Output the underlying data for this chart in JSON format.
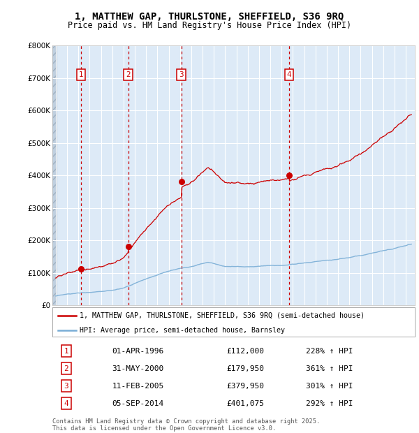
{
  "title_line1": "1, MATTHEW GAP, THURLSTONE, SHEFFIELD, S36 9RQ",
  "title_line2": "Price paid vs. HM Land Registry's House Price Index (HPI)",
  "purchases": [
    {
      "num": 1,
      "date_num": 1996.25,
      "price": 112000,
      "label": "01-APR-1996",
      "pct": "228% ↑ HPI"
    },
    {
      "num": 2,
      "date_num": 2000.42,
      "price": 179950,
      "label": "31-MAY-2000",
      "pct": "361% ↑ HPI"
    },
    {
      "num": 3,
      "date_num": 2005.12,
      "price": 379950,
      "label": "11-FEB-2005",
      "pct": "301% ↑ HPI"
    },
    {
      "num": 4,
      "date_num": 2014.67,
      "price": 401075,
      "label": "05-SEP-2014",
      "pct": "292% ↑ HPI"
    }
  ],
  "hpi_color": "#7aaed6",
  "price_color": "#cc0000",
  "background_chart": "#ddeaf7",
  "ylim": [
    0,
    800000
  ],
  "xlim_start": 1993.7,
  "xlim_end": 2025.8,
  "legend_label_price": "1, MATTHEW GAP, THURLSTONE, SHEFFIELD, S36 9RQ (semi-detached house)",
  "legend_label_hpi": "HPI: Average price, semi-detached house, Barnsley",
  "footer": "Contains HM Land Registry data © Crown copyright and database right 2025.\nThis data is licensed under the Open Government Licence v3.0.",
  "row_data": [
    [
      1,
      "01-APR-1996",
      "£112,000",
      "228% ↑ HPI"
    ],
    [
      2,
      "31-MAY-2000",
      "£179,950",
      "361% ↑ HPI"
    ],
    [
      3,
      "11-FEB-2005",
      "£379,950",
      "301% ↑ HPI"
    ],
    [
      4,
      "05-SEP-2014",
      "£401,075",
      "292% ↑ HPI"
    ]
  ]
}
